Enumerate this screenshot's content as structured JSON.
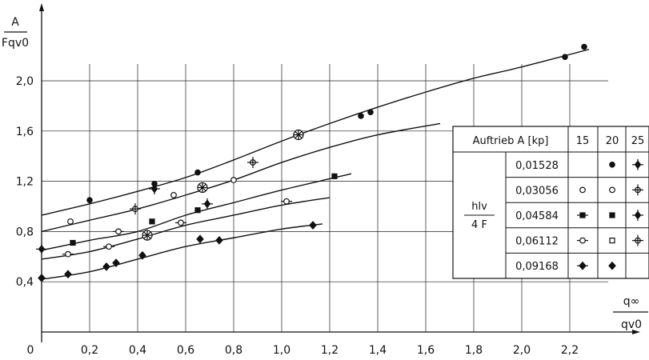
{
  "chart_data": {
    "type": "scatter",
    "title": "",
    "xlabel": {
      "numerator": "q∞",
      "denominator": "qv0"
    },
    "ylabel": {
      "numerator": "A",
      "denominator": "Fqv0"
    },
    "xlim": [
      0,
      2.4
    ],
    "ylim": [
      0,
      2.3
    ],
    "x_ticks": [
      "0",
      "0,2",
      "0,4",
      "0,6",
      "0,8",
      "1,0",
      "1,2",
      "1,4",
      "1,6",
      "1,8",
      "2,0",
      "2,2"
    ],
    "y_ticks": [
      "0,4",
      "0,8",
      "1,2",
      "1,6",
      "2,0"
    ],
    "y_tick_values": [
      0.4,
      0.8,
      1.2,
      1.6,
      2.0
    ],
    "grid": true,
    "curves": [
      {
        "x": [
          0,
          0.2,
          0.4,
          0.6,
          0.8,
          1.0,
          1.2,
          1.4,
          1.6,
          1.8,
          2.0,
          2.28
        ],
        "y": [
          0.93,
          1.02,
          1.12,
          1.23,
          1.37,
          1.52,
          1.66,
          1.79,
          1.91,
          2.02,
          2.11,
          2.25
        ]
      },
      {
        "x": [
          0,
          0.2,
          0.4,
          0.6,
          0.8,
          1.0,
          1.2,
          1.4,
          1.66
        ],
        "y": [
          0.8,
          0.89,
          0.98,
          1.09,
          1.21,
          1.35,
          1.47,
          1.57,
          1.66
        ]
      },
      {
        "x": [
          0,
          0.2,
          0.4,
          0.6,
          0.8,
          1.0,
          1.2,
          1.29
        ],
        "y": [
          0.65,
          0.73,
          0.8,
          0.93,
          1.03,
          1.13,
          1.22,
          1.26
        ]
      },
      {
        "x": [
          0,
          0.2,
          0.4,
          0.6,
          0.8,
          1.0,
          1.2
        ],
        "y": [
          0.58,
          0.64,
          0.74,
          0.85,
          0.93,
          1.01,
          1.07
        ]
      },
      {
        "x": [
          0,
          0.2,
          0.4,
          0.6,
          0.8,
          1.0,
          1.17
        ],
        "y": [
          0.42,
          0.48,
          0.58,
          0.68,
          0.75,
          0.82,
          0.86
        ]
      }
    ],
    "series": [
      {
        "marker": "dot",
        "x": [
          0.2,
          0.47,
          0.65,
          1.06,
          1.33,
          1.37,
          2.18,
          2.26
        ],
        "y": [
          1.05,
          1.18,
          1.27,
          1.57,
          1.72,
          1.75,
          2.19,
          2.27
        ]
      },
      {
        "marker": "circle",
        "x": [
          0.12,
          0.55,
          0.8
        ],
        "y": [
          0.88,
          1.09,
          1.21
        ]
      },
      {
        "marker": "circle-cross",
        "x": [
          0.39,
          0.88
        ],
        "y": [
          0.98,
          1.35
        ]
      },
      {
        "marker": "square",
        "x": [
          0.13,
          0.46,
          0.65,
          1.22
        ],
        "y": [
          0.71,
          0.88,
          0.97,
          1.24
        ]
      },
      {
        "marker": "diamond-cross",
        "x": [
          0,
          0.47,
          0.69
        ],
        "y": [
          0.66,
          1.14,
          1.02
        ]
      },
      {
        "marker": "circle-dash",
        "x": [
          0.11,
          0.28,
          0.32,
          0.58,
          1.02
        ],
        "y": [
          0.62,
          0.68,
          0.8,
          0.87,
          1.04
        ]
      },
      {
        "marker": "diamond",
        "x": [
          0,
          0.11,
          0.27,
          0.31,
          0.42,
          0.66,
          0.74,
          1.13
        ],
        "y": [
          0.43,
          0.46,
          0.52,
          0.55,
          0.61,
          0.74,
          0.73,
          0.85
        ]
      },
      {
        "marker": "asterisk-circle",
        "x": [
          1.07,
          0.67,
          0.44
        ],
        "y": [
          1.57,
          1.15,
          0.77
        ]
      }
    ]
  },
  "legend": {
    "header": "Auftrieb  A [kp]",
    "columns": [
      "15",
      "20",
      "25"
    ],
    "param_num": "hlv",
    "param_den": "4 F",
    "rows": [
      {
        "value": "0,01528",
        "markers": [
          "",
          "dot",
          "diamond-cross"
        ]
      },
      {
        "value": "0,03056",
        "markers": [
          "circle",
          "circle",
          "circle-cross"
        ]
      },
      {
        "value": "0,04584",
        "markers": [
          "square-dash",
          "square",
          "diamond-cross"
        ]
      },
      {
        "value": "0,06112",
        "markers": [
          "circle-dash",
          "square-open",
          "circle-cross"
        ]
      },
      {
        "value": "0,09168",
        "markers": [
          "diamond-dash",
          "diamond",
          ""
        ]
      }
    ]
  }
}
